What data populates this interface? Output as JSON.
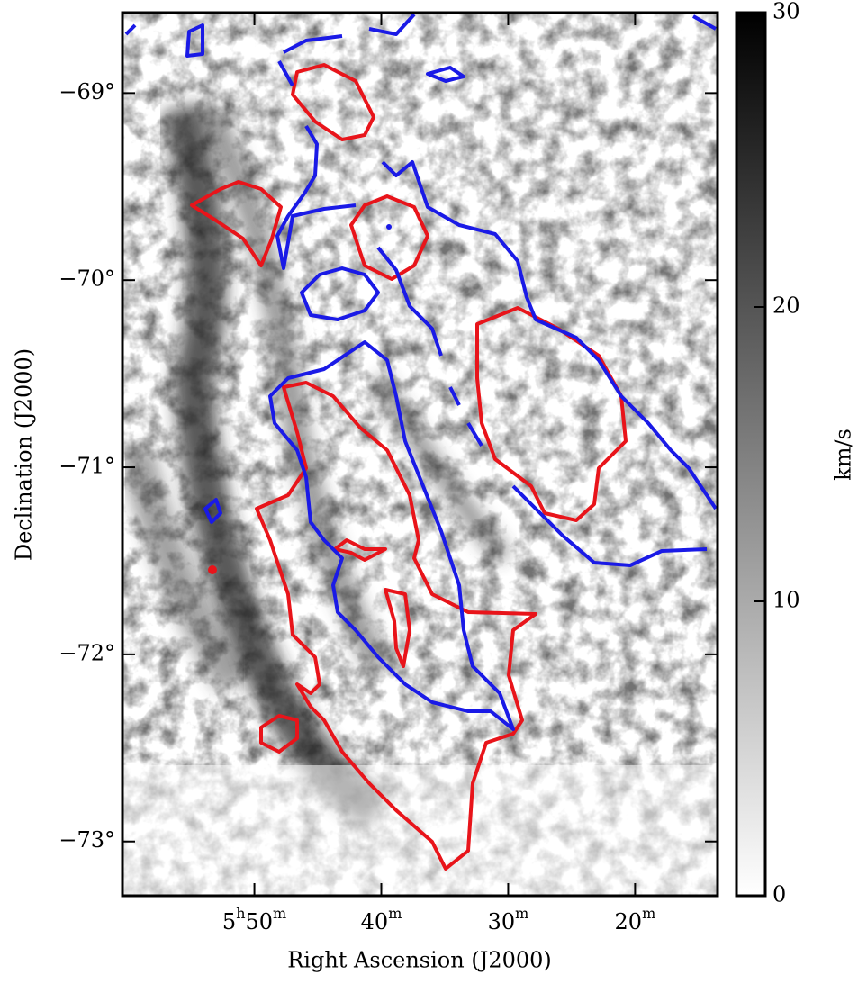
{
  "chart_data": {
    "type": "image",
    "xlabel": "Right Ascension (J2000)",
    "ylabel": "Declination (J2000)",
    "xlim": [
      360.4,
      313.5
    ],
    "xticks": [
      {
        "value": 350,
        "label": "5h50m"
      },
      {
        "value": 340,
        "label": "40m"
      },
      {
        "value": 330,
        "label": "30m"
      },
      {
        "value": 320,
        "label": "20m"
      }
    ],
    "ylim": [
      -73.29,
      -68.57
    ],
    "yticks": [
      {
        "value": -69,
        "label": "−69°"
      },
      {
        "value": -70,
        "label": "−70°"
      },
      {
        "value": -71,
        "label": "−71°"
      },
      {
        "value": -72,
        "label": "−72°"
      },
      {
        "value": -73,
        "label": "−73°"
      }
    ],
    "colorbar": {
      "label": "km/s",
      "lim": [
        0,
        30
      ],
      "ticks": [
        0,
        10,
        20,
        30
      ]
    }
  }
}
